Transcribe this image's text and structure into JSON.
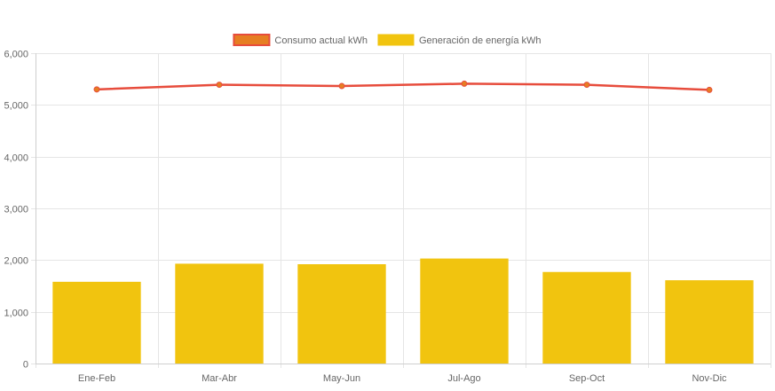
{
  "chart_data": {
    "type": "bar",
    "categories": [
      "Ene-Feb",
      "Mar-Abr",
      "May-Jun",
      "Jul-Ago",
      "Sep-Oct",
      "Nov-Dic"
    ],
    "series": [
      {
        "name": "Consumo actual kWh",
        "type": "line",
        "values": [
          5300,
          5390,
          5365,
          5410,
          5390,
          5290
        ],
        "color": "#e74c3c",
        "point_color": "#e67e22"
      },
      {
        "name": "Generación de energía kWh",
        "type": "bar",
        "values": [
          1580,
          1930,
          1920,
          2030,
          1770,
          1610
        ],
        "color": "#f1c40f"
      }
    ],
    "ylim": [
      0,
      6000
    ],
    "yticks": [
      "0",
      "1,000",
      "2,000",
      "3,000",
      "4,000",
      "5,000",
      "6,000"
    ],
    "ytick_values": [
      0,
      1000,
      2000,
      3000,
      4000,
      5000,
      6000
    ],
    "xlabel": "",
    "ylabel": "",
    "title": "",
    "grid": true,
    "legend_position": "top-center"
  }
}
